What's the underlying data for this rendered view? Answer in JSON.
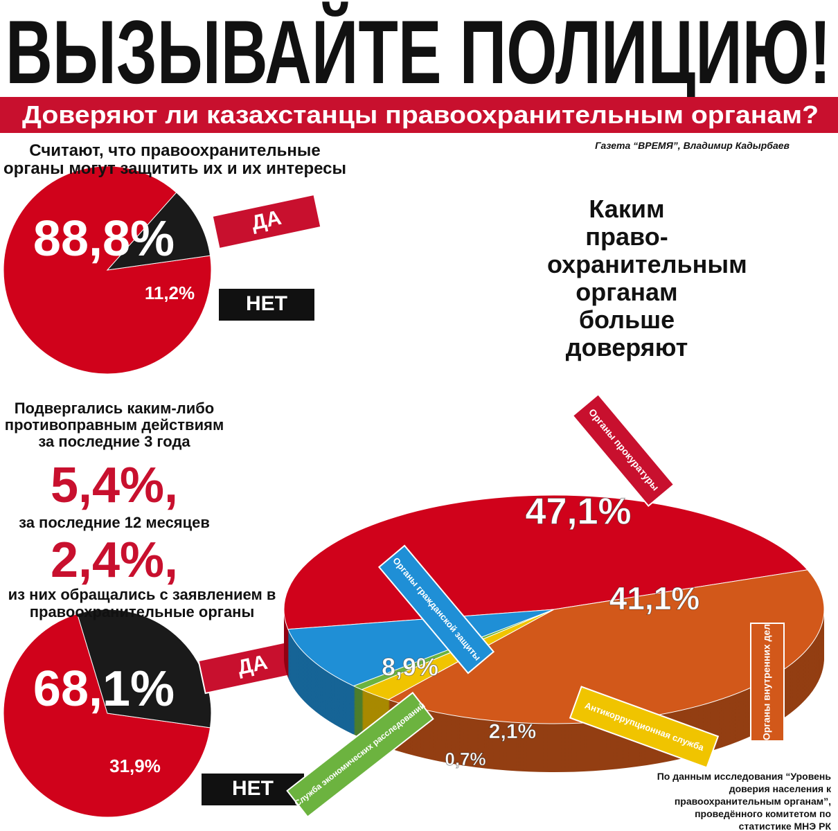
{
  "header": {
    "title": "ВЫЗЫВАЙТЕ ПОЛИЦИЮ!",
    "subtitle": "Доверяют ли казахстанцы правоохранительным органам?",
    "credit": "Газета “ВРЕМЯ”, Владимир Кадырбаев"
  },
  "victimization": {
    "text_3y": "Подвергались каким-либо противоправным действиям за последние 3 года",
    "value_3y": "5,4%,",
    "text_12m": "за последние 12 месяцев",
    "value_12m": "2,4%,"
  },
  "chart_data": [
    {
      "type": "pie",
      "title": "Считают, что правоохранительные органы могут защитить их и их интересы",
      "categories": [
        "ДА",
        "НЕТ"
      ],
      "values": [
        88.8,
        11.2
      ],
      "value_labels": [
        "88,8%",
        "11,2%"
      ],
      "colors": [
        "#d0021b",
        "#1a1a1a"
      ]
    },
    {
      "type": "pie",
      "title": "из них обращались с заявлением в правоохранительные органы",
      "categories": [
        "ДА",
        "НЕТ"
      ],
      "values": [
        68.1,
        31.9
      ],
      "value_labels": [
        "68,1%",
        "31,9%"
      ],
      "colors": [
        "#d0021b",
        "#1a1a1a"
      ]
    },
    {
      "type": "pie3d",
      "title": "Каким право-охранительным органам больше доверяют",
      "categories": [
        "Органы прокуратуры",
        "Органы внутренних дел",
        "Антикоррупционная служба",
        "Служба экономических расследований",
        "Органы гражданской защиты"
      ],
      "values": [
        47.1,
        41.1,
        2.1,
        0.7,
        8.9
      ],
      "value_labels": [
        "47,1%",
        "41,1%",
        "2,1%",
        "0,7%",
        "8,9%"
      ],
      "colors": [
        "#d0021b",
        "#d2581a",
        "#f0c400",
        "#6cb33f",
        "#1f8fd6"
      ]
    }
  ],
  "source": "По данным исследования “Уровень доверия населения к правоохранительным органам”, проведённого комитетом по статистике МНЭ РК"
}
